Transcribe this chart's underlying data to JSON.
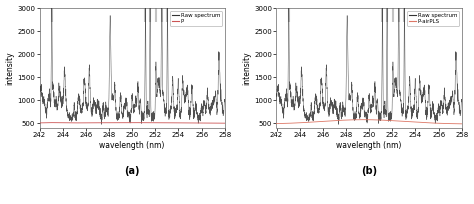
{
  "xlim": [
    242,
    258
  ],
  "ylim": [
    400,
    3000
  ],
  "yticks": [
    500,
    1000,
    1500,
    2000,
    2500,
    3000
  ],
  "xticks": [
    242,
    244,
    246,
    248,
    250,
    252,
    254,
    256,
    258
  ],
  "xlabel": "wavelength (nm)",
  "ylabel": "intensity",
  "label_a": "(a)",
  "label_b": "(b)",
  "legend_a": [
    "Raw spectrum",
    "P"
  ],
  "legend_b": [
    "Raw spectrum",
    "P-airPLS"
  ],
  "raw_color": "#333333",
  "baseline_color_a": "#cc5555",
  "baseline_color_b": "#dd7766",
  "bg_color": "#ffffff",
  "spike_clip_positions": [
    243.05,
    251.15,
    251.55,
    252.05,
    252.55,
    253.05
  ],
  "spike_clip_color": "#aaaaaa"
}
